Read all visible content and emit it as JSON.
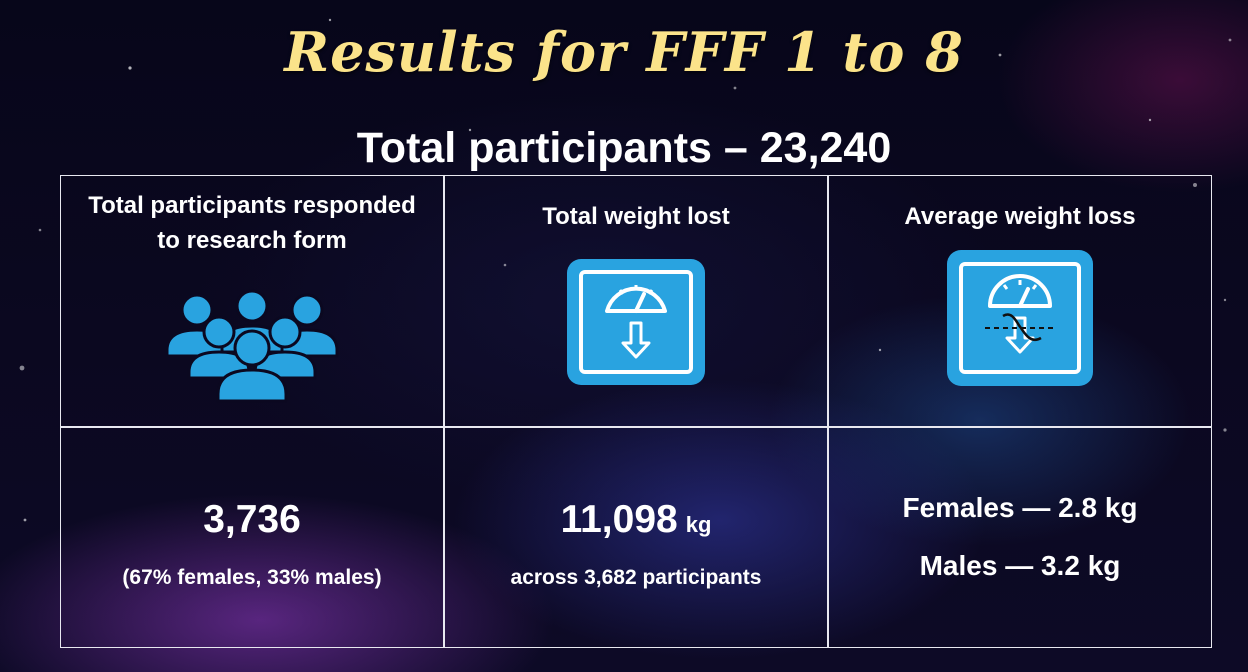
{
  "title": "Results for FFF 1 to 8",
  "subtitle": "Total participants – 23,240",
  "accent_color": "#29a3e0",
  "title_color": "#fbe38a",
  "cards": {
    "responded": {
      "heading_line1": "Total participants responded",
      "heading_line2": "to research form",
      "icon": "people-group-icon",
      "value": "3,736",
      "note": "(67% females, 33% males)"
    },
    "weight_lost": {
      "heading": "Total weight lost",
      "icon": "weighing-scale-icon",
      "value": "11,098",
      "unit": "kg",
      "note": "across 3,682 participants"
    },
    "average_loss": {
      "heading": "Average weight loss",
      "icon": "weighing-scale-average-icon",
      "females": "Females — 2.8 kg",
      "males": "Males — 3.2 kg"
    }
  }
}
